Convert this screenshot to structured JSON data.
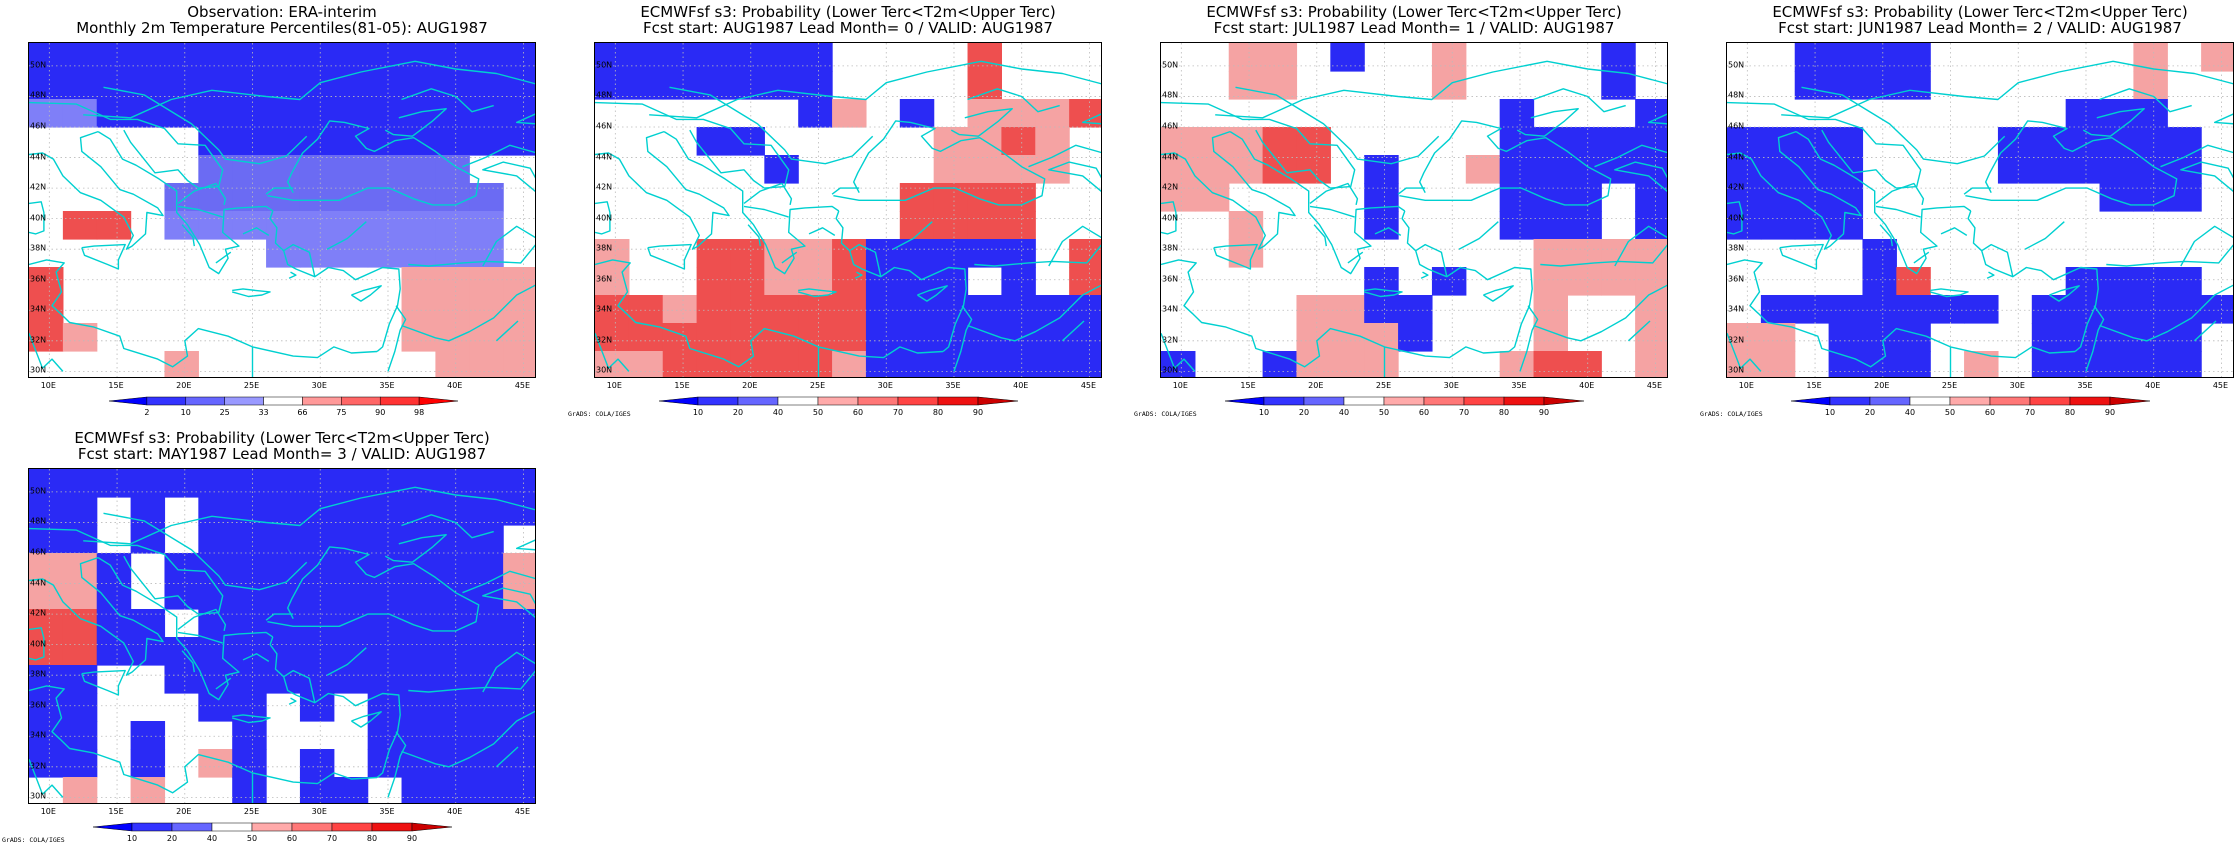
{
  "panels": [
    {
      "title_line1": "Observation: ERA-interim",
      "title_line2": "Monthly 2m Temperature Percentiles(81-05): AUG1987",
      "colorbar_kind": "percentile",
      "credit": "",
      "grid": [
        "BBBBBBBBBBBBBBB",
        "BBBBBBBBBBBBBBB",
        "LLBBBBBBBBBBBBB",
        "WWWWWBBBBBBBBBB",
        "WWWWWMMMMMMMMWW",
        "WWWWMMMMMMMMMMW",
        "WRRWLLLLLLLLLLW",
        "WWWWWWWLLLLLLLW",
        "RWWWWWWWWWWPPPP",
        "RWWWWWWWWWWPPPP",
        "RPWWWWWWWWWPPPP",
        "WWWWPWWWWWWWPPP"
      ]
    },
    {
      "title_line1": "ECMWFsf s3: Probability (Lower Terc<T2m<Upper Terc)",
      "title_line2": "Fcst start: AUG1987  Lead Month= 0 / VALID: AUG1987",
      "colorbar_kind": "probability",
      "credit": "GrADS: COLA/IGES",
      "grid": [
        "BBBBBBBWWWWRWWW",
        "BBBBBBBWWWWRWWW",
        "WWWWWWBPWBWPPPR",
        "WWWBBWWWWWPPRPW",
        "WWWWWBWWWWPPPPW",
        "WWWWWWWWWRRRRWW",
        "WWWWWWWWWRRRRWW",
        "PWWRRPPRBBBBBWR",
        "PWWRRPPRBBBWBWR",
        "RRPRRRRRBBBBBBB",
        "RRRRRRRRBBBBBBB",
        "PPRRRRRPBBBBBBB"
      ]
    },
    {
      "title_line1": "ECMWFsf s3: Probability (Lower Terc<T2m<Upper Terc)",
      "title_line2": "Fcst start: JUL1987  Lead Month= 1 / VALID: AUG1987",
      "colorbar_kind": "probability",
      "credit": "GrADS: COLA/IGES",
      "grid": [
        "WWPPWBWWPWWWWBW",
        "WWPPWWWWPWWWWBW",
        "WWWWWWWWWWBWWWB",
        "PPPRRWWWWWBBBBB",
        "PPPRRWBWWPBBBBB",
        "PPWWWWBWWWBBBWB",
        "WWPWWWBWWWBBBWB",
        "WWPWWWWWWWWPPPP",
        "WWWWWWBWBWWPPPP",
        "WWWWPPBBWWWPWWP",
        "WWWWPPPBWWWPWWP",
        "BWWBPPPWWWPRRWP"
      ]
    },
    {
      "title_line1": "ECMWFsf s3: Probability (Lower Terc<T2m<Upper Terc)",
      "title_line2": "Fcst start: JUN1987  Lead Month= 2 / VALID: AUG1987",
      "colorbar_kind": "probability",
      "credit": "GrADS: COLA/IGES",
      "grid": [
        "WWBBBBWWWWWWPWP",
        "WWBBBBWWWWWWPWW",
        "WWWWWWWWWWBBBWW",
        "BBBBWWWWBBBBBBW",
        "BBBBWWWWBBBBBBW",
        "BBBBWWWWWWWBBBW",
        "BBBBWWWWWWWWWWW",
        "WWWWBWWWWWWWWWW",
        "WWWWBRWWWWBBBBW",
        "WBBBBBBBWBBBBBB",
        "PPWBBBWWWBBBBBW",
        "PPWBBBWPWBBBBBW"
      ]
    },
    {
      "title_line1": "ECMWFsf s3: Probability (Lower Terc<T2m<Upper Terc)",
      "title_line2": "Fcst start: MAY1987  Lead Month= 3 / VALID: AUG1987",
      "colorbar_kind": "probability",
      "credit": "GrADS: COLA/IGES",
      "grid": [
        "BBBBBBBBBBBBBBB",
        "BBWBWBBBBBBBBBB",
        "BBWBWBBBBBBBBBW",
        "PPBWBBBBBBBBBBP",
        "PPBWBBBBBBBBBBP",
        "RRBBWBBBBBBBBBB",
        "RRBBBBBBBBBBBBB",
        "BBWWBBBBBBBBBBB",
        "BBWWWBBWBWBBBBB",
        "BBWBWWBWWWBBBBB",
        "BBWBWPBWBWBBBBB",
        "WPWPWWBWBBWBBBB"
      ]
    }
  ],
  "y_tick_labels": [
    "30N",
    "32N",
    "34N",
    "36N",
    "38N",
    "40N",
    "42N",
    "44N",
    "46N",
    "48N",
    "50N"
  ],
  "x_tick_labels": [
    "10E",
    "15E",
    "20E",
    "25E",
    "30E",
    "35E",
    "40E",
    "45E"
  ],
  "percentile_scale": {
    "labels": [
      "2",
      "10",
      "25",
      "33",
      "66",
      "75",
      "90",
      "98"
    ],
    "colors": [
      "#0000ff",
      "#3333ff",
      "#6666ff",
      "#9999ff",
      "#ffffff",
      "#ff9999",
      "#ff6666",
      "#ff3333",
      "#ff0000"
    ]
  },
  "probability_scale": {
    "labels": [
      "10",
      "20",
      "40",
      "50",
      "60",
      "70",
      "80",
      "90"
    ],
    "colors": [
      "#0000ff",
      "#3333ff",
      "#6666ff",
      "#ffffff",
      "#ffaaaa",
      "#ff7777",
      "#ff4444",
      "#ee1111",
      "#cc0000"
    ]
  },
  "cell_colors": {
    "B": "#2a2af5",
    "L": "#7f7ff8",
    "M": "#6b6bf3",
    "W": "#ffffff",
    "P": "#f5a3a3",
    "R": "#ee4f4f"
  },
  "coastline_color": "#00d0d0"
}
